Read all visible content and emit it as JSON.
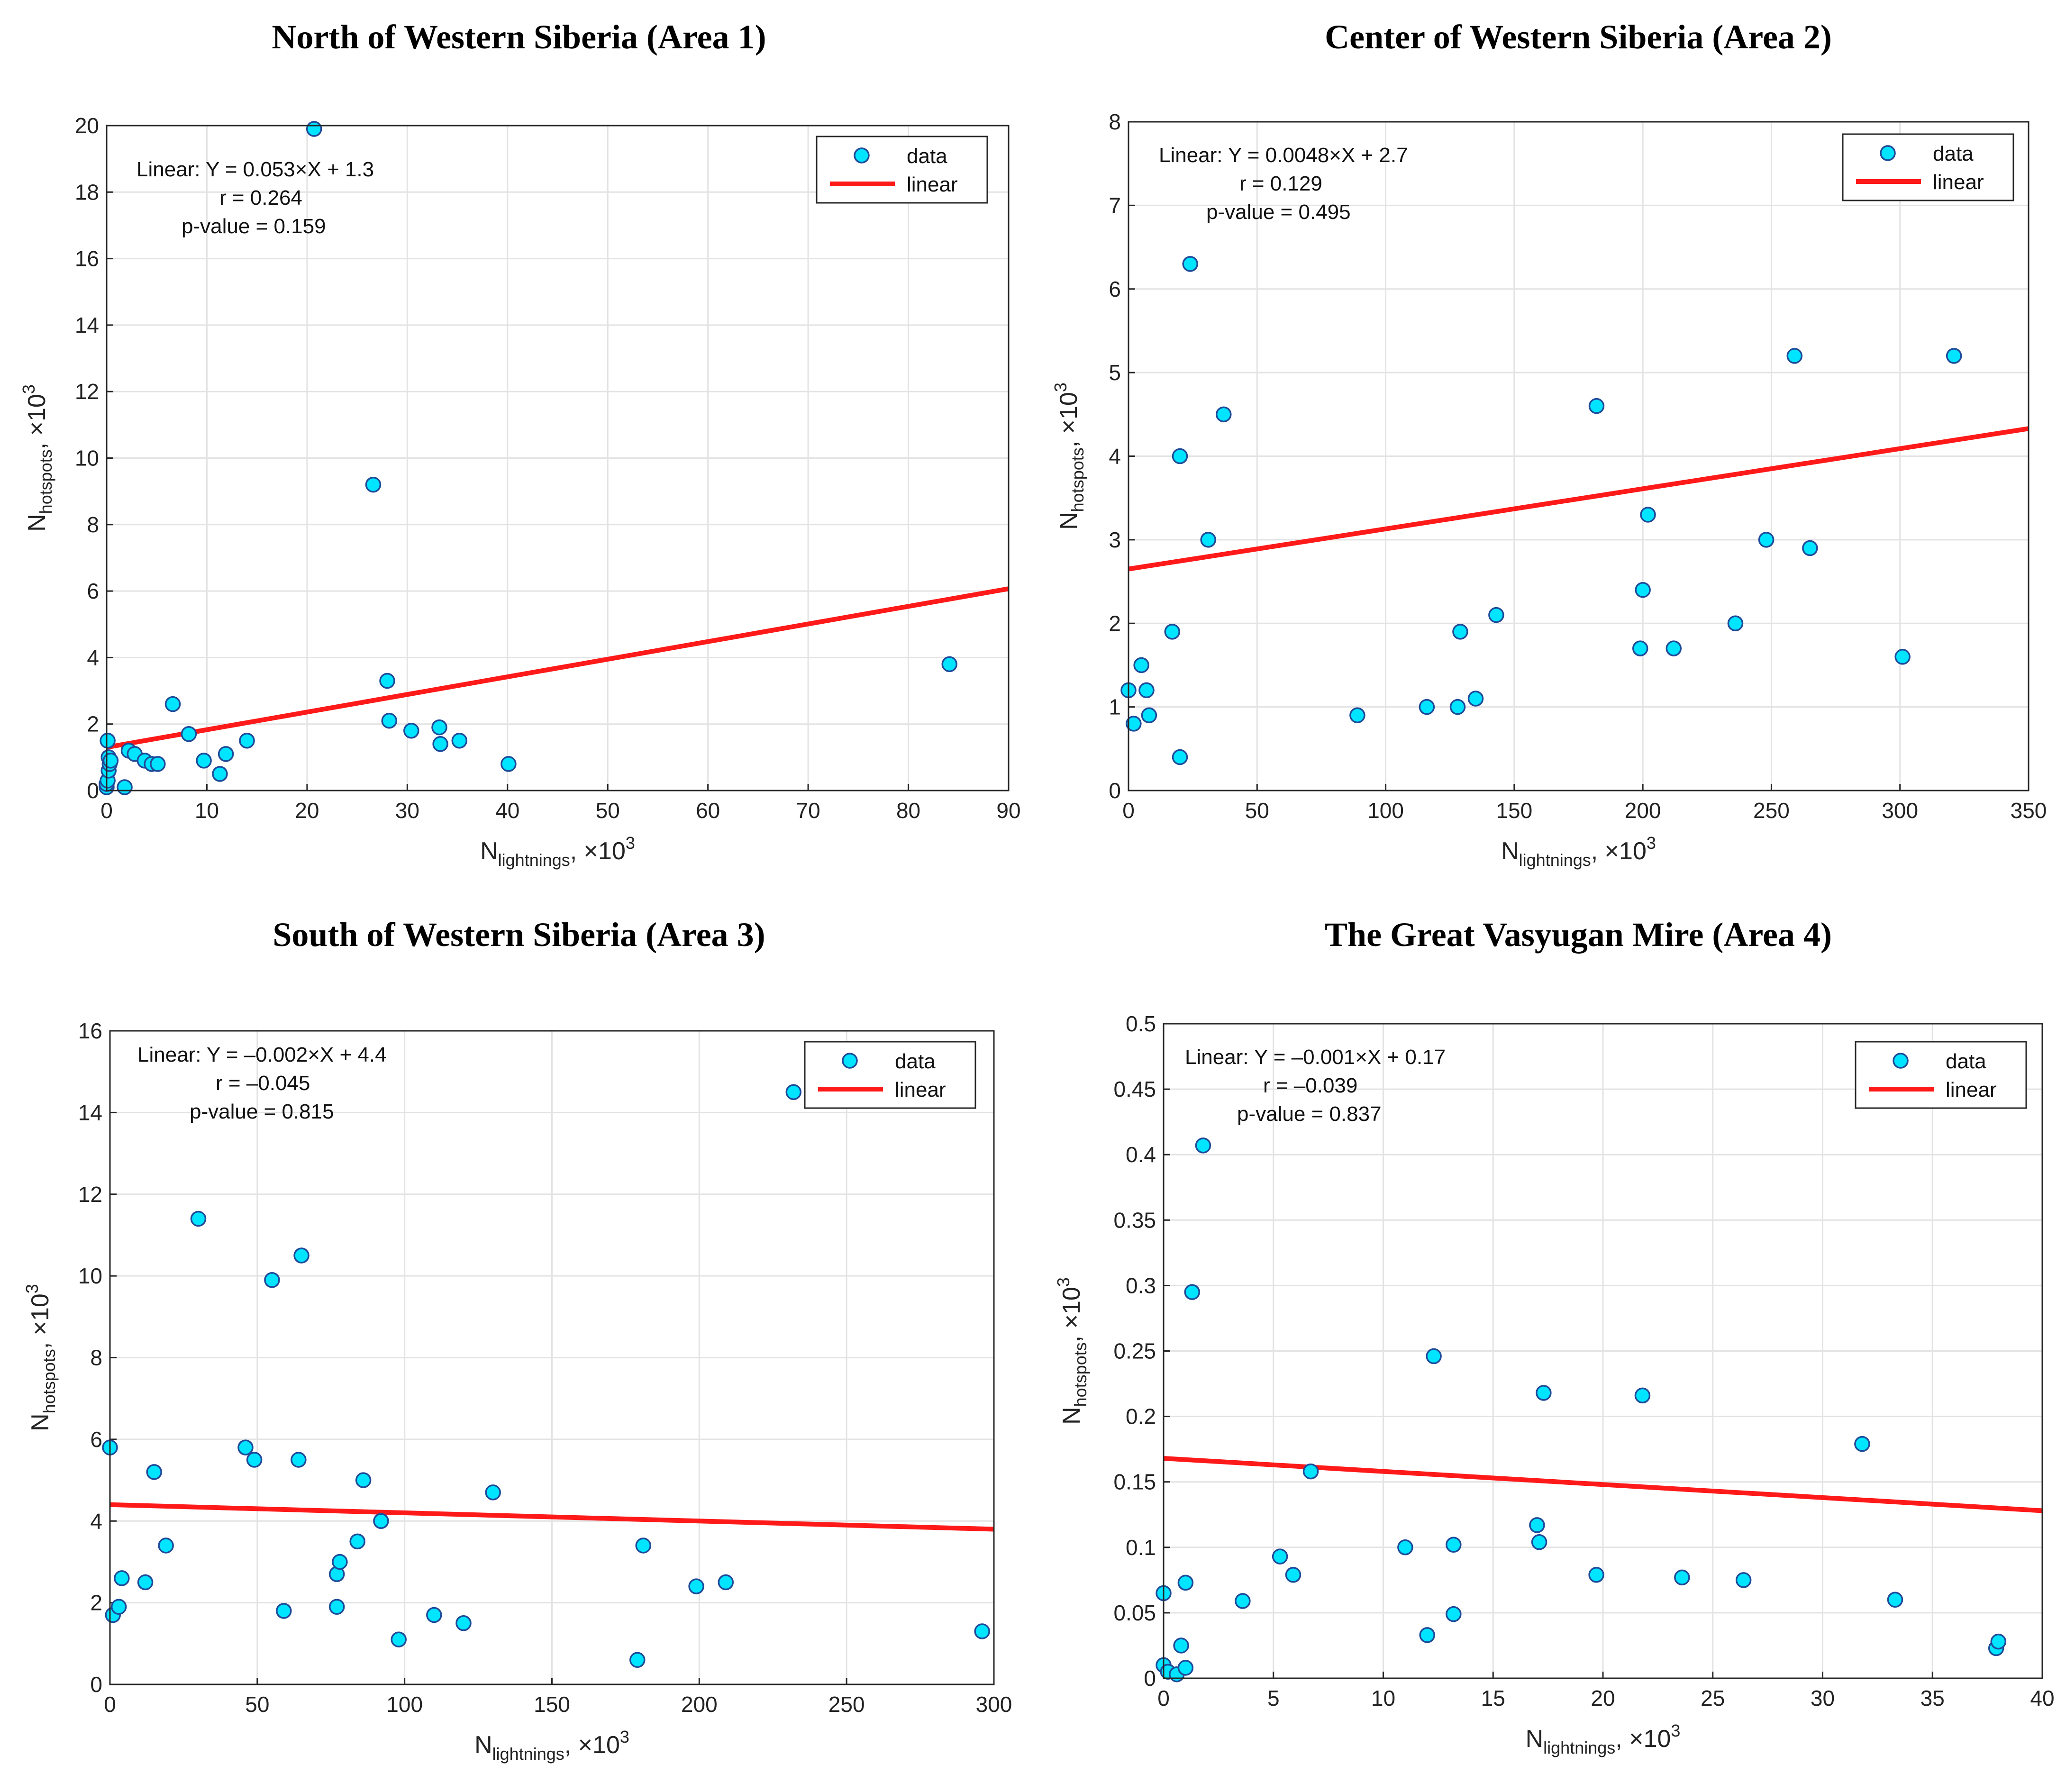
{
  "chart_data": [
    {
      "type": "scatter",
      "title": "North of Western Siberia (Area 1)",
      "xlabel": {
        "base": "N",
        "sub": "lightnings",
        "suffix": ", ×10",
        "sup": "3"
      },
      "ylabel": {
        "base": "N",
        "sub": "hotspots",
        "suffix": ", ×10",
        "sup": "3"
      },
      "xlim": [
        0,
        90
      ],
      "ylim": [
        0,
        20
      ],
      "xticks": [
        0,
        10,
        20,
        30,
        40,
        50,
        60,
        70,
        80,
        90
      ],
      "yticks": [
        0,
        2,
        4,
        6,
        8,
        10,
        12,
        14,
        16,
        18,
        20
      ],
      "grid": true,
      "legend": {
        "position": "top-right",
        "entries": [
          "data",
          "linear"
        ]
      },
      "fit": {
        "slope": 0.053,
        "intercept": 1.3
      },
      "annotation": [
        "Linear:  Y = 0.053×X + 1.3",
        "r = 0.264",
        "p-value = 0.159"
      ],
      "series": [
        {
          "name": "data",
          "color": "#00e5ff",
          "x": [
            0,
            0,
            0.1,
            0.2,
            0.3,
            0.2,
            0.1,
            0.4,
            1.8,
            2.2,
            2.8,
            3.8,
            4.5,
            5.1,
            6.6,
            8.2,
            9.7,
            11.3,
            11.9,
            14.0,
            20.7,
            26.6,
            28.0,
            28.2,
            30.4,
            33.2,
            33.3,
            35.2,
            40.1,
            84.1
          ],
          "y": [
            0.1,
            0.2,
            0.3,
            0.6,
            0.8,
            1.0,
            1.5,
            0.9,
            0.1,
            1.2,
            1.1,
            0.9,
            0.8,
            0.8,
            2.6,
            1.7,
            0.9,
            0.5,
            1.1,
            1.5,
            19.9,
            9.2,
            3.3,
            2.1,
            1.8,
            1.9,
            1.4,
            1.5,
            0.8,
            3.8
          ]
        },
        {
          "name": "linear",
          "color": "#ff1a1a"
        }
      ]
    },
    {
      "type": "scatter",
      "title": "Center of Western Siberia (Area 2)",
      "xlabel": {
        "base": "N",
        "sub": "lightnings",
        "suffix": ", ×10",
        "sup": "3"
      },
      "ylabel": {
        "base": "N",
        "sub": "hotspots",
        "suffix": ", ×10",
        "sup": "3"
      },
      "xlim": [
        0,
        350
      ],
      "ylim": [
        0,
        8
      ],
      "xticks": [
        0,
        50,
        100,
        150,
        200,
        250,
        300,
        350
      ],
      "yticks": [
        0,
        1,
        2,
        3,
        4,
        5,
        6,
        7,
        8
      ],
      "grid": true,
      "legend": {
        "position": "top-right",
        "entries": [
          "data",
          "linear"
        ]
      },
      "fit": {
        "slope": 0.0048,
        "intercept": 2.65
      },
      "annotation": [
        "Linear:  Y = 0.0048×X + 2.7",
        "r = 0.129",
        "p-value = 0.495"
      ],
      "series": [
        {
          "name": "data",
          "color": "#00e5ff",
          "x": [
            0,
            2,
            5,
            7,
            8,
            17,
            20,
            20,
            24,
            31,
            37,
            89,
            116,
            128,
            129,
            135,
            143,
            182,
            199,
            200,
            202,
            212,
            236,
            248,
            259,
            265,
            301,
            321
          ],
          "y": [
            1.2,
            0.8,
            1.5,
            1.2,
            0.9,
            1.9,
            4.0,
            0.4,
            6.3,
            3.0,
            4.5,
            0.9,
            1.0,
            1.0,
            1.9,
            1.1,
            2.1,
            4.6,
            1.7,
            2.4,
            3.3,
            1.7,
            2.0,
            3.0,
            5.2,
            2.9,
            1.6,
            5.2
          ]
        },
        {
          "name": "linear",
          "color": "#ff1a1a"
        }
      ]
    },
    {
      "type": "scatter",
      "title": "South of Western Siberia (Area 3)",
      "xlabel": {
        "base": "N",
        "sub": "lightnings",
        "suffix": ", ×10",
        "sup": "3"
      },
      "ylabel": {
        "base": "N",
        "sub": "hotspots",
        "suffix": ", ×10",
        "sup": "3"
      },
      "xlim": [
        0,
        300
      ],
      "ylim": [
        0,
        16
      ],
      "xticks": [
        0,
        50,
        100,
        150,
        200,
        250,
        300
      ],
      "yticks": [
        0,
        2,
        4,
        6,
        8,
        10,
        12,
        14,
        16
      ],
      "grid": true,
      "legend": {
        "position": "top-right",
        "entries": [
          "data",
          "linear"
        ]
      },
      "fit": {
        "slope": -0.002,
        "intercept": 4.4
      },
      "annotation": [
        "Linear:  Y = –0.002×X + 4.4",
        "r = –0.045",
        "p-value = 0.815"
      ],
      "series": [
        {
          "name": "data",
          "color": "#00e5ff",
          "x": [
            0,
            1,
            3,
            4,
            12,
            15,
            19,
            30,
            46,
            49,
            55,
            59,
            64,
            65,
            77,
            77,
            78,
            84,
            86,
            92,
            98,
            110,
            120,
            130,
            179,
            181,
            199,
            209,
            232,
            296
          ],
          "y": [
            5.8,
            1.7,
            1.9,
            2.6,
            2.5,
            5.2,
            3.4,
            11.4,
            5.8,
            5.5,
            9.9,
            1.8,
            5.5,
            10.5,
            2.7,
            1.9,
            3.0,
            3.5,
            5.0,
            4.0,
            1.1,
            1.7,
            1.5,
            4.7,
            0.6,
            3.4,
            2.4,
            2.5,
            14.5,
            1.3
          ]
        },
        {
          "name": "linear",
          "color": "#ff1a1a"
        }
      ]
    },
    {
      "type": "scatter",
      "title": "The Great Vasyugan Mire (Area 4)",
      "xlabel": {
        "base": "N",
        "sub": "lightnings",
        "suffix": ", ×10",
        "sup": "3"
      },
      "ylabel": {
        "base": "N",
        "sub": "hotspots",
        "suffix": ", ×10",
        "sup": "3"
      },
      "xlim": [
        0,
        40
      ],
      "ylim": [
        0,
        0.5
      ],
      "xticks": [
        0,
        5,
        10,
        15,
        20,
        25,
        30,
        35,
        40
      ],
      "yticks": [
        0,
        0.05,
        0.1,
        0.15,
        0.2,
        0.25,
        0.3,
        0.35,
        0.4,
        0.45,
        0.5
      ],
      "grid": true,
      "legend": {
        "position": "top-right",
        "entries": [
          "data",
          "linear"
        ]
      },
      "fit": {
        "slope": -0.001,
        "intercept": 0.168
      },
      "annotation": [
        "Linear:  Y = –0.001×X + 0.17",
        "r = –0.039",
        "p-value = 0.837"
      ],
      "series": [
        {
          "name": "data",
          "color": "#00e5ff",
          "x": [
            0,
            0,
            0.2,
            0.6,
            0.8,
            1.0,
            1.0,
            1.3,
            1.8,
            3.6,
            5.3,
            5.9,
            6.7,
            11.0,
            12.0,
            12.3,
            13.2,
            13.2,
            17.0,
            17.1,
            17.3,
            19.7,
            21.8,
            23.6,
            26.4,
            31.8,
            33.3,
            37.9,
            38.0
          ],
          "y": [
            0.065,
            0.01,
            0.005,
            0.003,
            0.025,
            0.073,
            0.008,
            0.295,
            0.407,
            0.059,
            0.093,
            0.079,
            0.158,
            0.1,
            0.033,
            0.246,
            0.102,
            0.049,
            0.117,
            0.104,
            0.218,
            0.079,
            0.216,
            0.077,
            0.075,
            0.179,
            0.06,
            0.023,
            0.028
          ]
        },
        {
          "name": "linear",
          "color": "#ff1a1a"
        }
      ]
    }
  ]
}
